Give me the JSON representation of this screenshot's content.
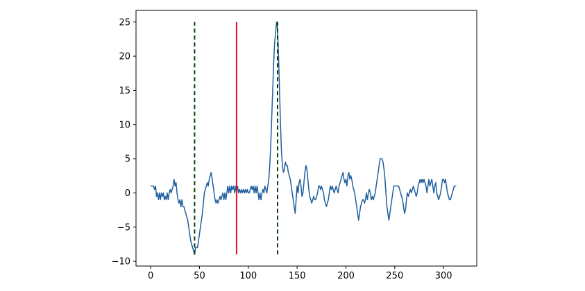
{
  "chart_data": {
    "type": "line",
    "title": "",
    "xlabel": "",
    "ylabel": "",
    "xlim": [
      -15,
      334
    ],
    "ylim": [
      -10.7,
      26.7
    ],
    "x_ticks": [
      0,
      50,
      100,
      150,
      200,
      250,
      300
    ],
    "x_tick_labels": [
      "0",
      "50",
      "100",
      "150",
      "200",
      "250",
      "300"
    ],
    "y_ticks": [
      -10,
      -5,
      0,
      5,
      10,
      15,
      20,
      25
    ],
    "y_tick_labels": [
      "−10",
      "−5",
      "0",
      "5",
      "10",
      "15",
      "20",
      "25"
    ],
    "grid": false,
    "legend": "none",
    "colors": {
      "series": "#1f5f9e",
      "marker_dashed": "#0b3d0b",
      "marker_solid": "#e8141a",
      "axes": "#000000"
    },
    "series": [
      {
        "points": [
          [
            0,
            1
          ],
          [
            3,
            1
          ],
          [
            4,
            0.5
          ],
          [
            5,
            1
          ],
          [
            6,
            -0.5
          ],
          [
            7,
            0
          ],
          [
            8,
            -1
          ],
          [
            9,
            0
          ],
          [
            10,
            -1
          ],
          [
            11,
            0
          ],
          [
            12,
            -0.5
          ],
          [
            13,
            0
          ],
          [
            14,
            -1
          ],
          [
            15,
            -0.5
          ],
          [
            16,
            -1
          ],
          [
            17,
            0
          ],
          [
            18,
            -1
          ],
          [
            19,
            0
          ],
          [
            20,
            0.5
          ],
          [
            21,
            0
          ],
          [
            22,
            0.5
          ],
          [
            23,
            1
          ],
          [
            24,
            2
          ],
          [
            25,
            1
          ],
          [
            26,
            1.5
          ],
          [
            27,
            0
          ],
          [
            28,
            -1
          ],
          [
            29,
            -1.5
          ],
          [
            30,
            -1
          ],
          [
            31,
            -2
          ],
          [
            32,
            -1
          ],
          [
            33,
            -2
          ],
          [
            34,
            -2
          ],
          [
            35,
            -2.5
          ],
          [
            36,
            -3
          ],
          [
            37,
            -3.5
          ],
          [
            38,
            -4
          ],
          [
            39,
            -5
          ],
          [
            40,
            -6
          ],
          [
            41,
            -7
          ],
          [
            42,
            -7.5
          ],
          [
            43,
            -8
          ],
          [
            44,
            -8.5
          ],
          [
            45,
            -9
          ],
          [
            46,
            -8
          ],
          [
            47,
            -8
          ],
          [
            48,
            -8
          ],
          [
            49,
            -7
          ],
          [
            50,
            -6
          ],
          [
            51,
            -5
          ],
          [
            52,
            -4
          ],
          [
            53,
            -3
          ],
          [
            54,
            -1.5
          ],
          [
            55,
            0
          ],
          [
            56,
            0.5
          ],
          [
            57,
            1
          ],
          [
            58,
            1.5
          ],
          [
            59,
            1
          ],
          [
            60,
            2
          ],
          [
            61,
            2.5
          ],
          [
            62,
            3
          ],
          [
            63,
            2
          ],
          [
            64,
            1
          ],
          [
            65,
            0
          ],
          [
            66,
            -1
          ],
          [
            67,
            -1.5
          ],
          [
            68,
            -1
          ],
          [
            69,
            -1.5
          ],
          [
            70,
            -1
          ],
          [
            71,
            -0.5
          ],
          [
            72,
            -1
          ],
          [
            73,
            -0.5
          ],
          [
            74,
            0
          ],
          [
            75,
            -1
          ],
          [
            76,
            0
          ],
          [
            77,
            -1
          ],
          [
            78,
            0
          ],
          [
            79,
            1
          ],
          [
            80,
            0
          ],
          [
            81,
            1
          ],
          [
            82,
            0
          ],
          [
            83,
            1
          ],
          [
            84,
            0.5
          ],
          [
            85,
            1
          ],
          [
            86,
            0
          ],
          [
            87,
            1
          ],
          [
            88,
            0
          ],
          [
            89,
            1
          ],
          [
            90,
            0
          ],
          [
            91,
            0.5
          ],
          [
            92,
            0
          ],
          [
            93,
            0.5
          ],
          [
            94,
            0
          ],
          [
            95,
            0.5
          ],
          [
            96,
            0
          ],
          [
            97,
            0.5
          ],
          [
            98,
            0
          ],
          [
            99,
            0.5
          ],
          [
            100,
            0
          ],
          [
            101,
            0
          ],
          [
            102,
            0.5
          ],
          [
            103,
            1
          ],
          [
            104,
            0.5
          ],
          [
            105,
            1
          ],
          [
            106,
            0
          ],
          [
            107,
            1
          ],
          [
            108,
            0
          ],
          [
            109,
            1
          ],
          [
            110,
            0
          ],
          [
            111,
            -1
          ],
          [
            112,
            0
          ],
          [
            113,
            -1
          ],
          [
            114,
            0
          ],
          [
            115,
            0.5
          ],
          [
            116,
            0
          ],
          [
            117,
            1
          ],
          [
            118,
            0.5
          ],
          [
            119,
            0
          ],
          [
            120,
            1
          ],
          [
            121,
            2
          ],
          [
            122,
            4
          ],
          [
            123,
            7
          ],
          [
            124,
            11
          ],
          [
            125,
            15
          ],
          [
            126,
            19
          ],
          [
            127,
            22
          ],
          [
            128,
            23.5
          ],
          [
            129,
            25
          ],
          [
            130,
            24
          ],
          [
            131,
            20
          ],
          [
            132,
            15
          ],
          [
            133,
            10
          ],
          [
            134,
            6
          ],
          [
            135,
            4
          ],
          [
            136,
            3
          ],
          [
            137,
            3.5
          ],
          [
            138,
            4.5
          ],
          [
            139,
            4
          ],
          [
            140,
            4
          ],
          [
            141,
            3
          ],
          [
            142,
            2.5
          ],
          [
            143,
            2
          ],
          [
            144,
            1
          ],
          [
            145,
            0
          ],
          [
            146,
            -1
          ],
          [
            147,
            -2
          ],
          [
            148,
            -3
          ],
          [
            149,
            -1
          ],
          [
            150,
            1
          ],
          [
            151,
            0
          ],
          [
            152,
            1.5
          ],
          [
            153,
            2
          ],
          [
            154,
            1
          ],
          [
            155,
            -0.5
          ],
          [
            156,
            0
          ],
          [
            157,
            1.5
          ],
          [
            158,
            3
          ],
          [
            159,
            4
          ],
          [
            160,
            3.5
          ],
          [
            161,
            2
          ],
          [
            162,
            0.5
          ],
          [
            163,
            -0.5
          ],
          [
            164,
            -1
          ],
          [
            165,
            -1.5
          ],
          [
            166,
            -1
          ],
          [
            167,
            -0.5
          ],
          [
            168,
            -1
          ],
          [
            169,
            -1
          ],
          [
            170,
            -0.5
          ],
          [
            171,
            0
          ],
          [
            172,
            1
          ],
          [
            173,
            1
          ],
          [
            174,
            0.5
          ],
          [
            175,
            1
          ],
          [
            176,
            0.5
          ],
          [
            177,
            0
          ],
          [
            178,
            -1
          ],
          [
            179,
            -1.5
          ],
          [
            180,
            -2
          ],
          [
            181,
            -1.5
          ],
          [
            182,
            -1
          ],
          [
            183,
            0
          ],
          [
            184,
            1
          ],
          [
            185,
            0.5
          ],
          [
            186,
            1
          ],
          [
            187,
            0.5
          ],
          [
            188,
            0
          ],
          [
            189,
            0.5
          ],
          [
            190,
            1
          ],
          [
            191,
            0.5
          ],
          [
            192,
            0
          ],
          [
            193,
            1
          ],
          [
            194,
            1.5
          ],
          [
            195,
            2
          ],
          [
            196,
            2.5
          ],
          [
            197,
            3
          ],
          [
            198,
            2
          ],
          [
            199,
            1.5
          ],
          [
            200,
            2
          ],
          [
            201,
            1
          ],
          [
            202,
            2.5
          ],
          [
            203,
            3
          ],
          [
            204,
            2
          ],
          [
            205,
            2.5
          ],
          [
            206,
            2
          ],
          [
            207,
            1
          ],
          [
            208,
            0.5
          ],
          [
            209,
            0
          ],
          [
            210,
            -1
          ],
          [
            211,
            -2
          ],
          [
            212,
            -3
          ],
          [
            213,
            -4
          ],
          [
            214,
            -3
          ],
          [
            215,
            -2
          ],
          [
            216,
            -1.5
          ],
          [
            217,
            -1
          ],
          [
            218,
            -1
          ],
          [
            219,
            -1.5
          ],
          [
            220,
            -1
          ],
          [
            221,
            0
          ],
          [
            222,
            -1
          ],
          [
            223,
            0
          ],
          [
            224,
            0.5
          ],
          [
            225,
            0
          ],
          [
            226,
            -1
          ],
          [
            227,
            -0.5
          ],
          [
            228,
            -1
          ],
          [
            229,
            -0.5
          ],
          [
            230,
            0
          ],
          [
            231,
            1
          ],
          [
            232,
            2
          ],
          [
            233,
            3
          ],
          [
            234,
            4
          ],
          [
            235,
            5
          ],
          [
            236,
            5
          ],
          [
            237,
            5
          ],
          [
            238,
            4.5
          ],
          [
            239,
            3.5
          ],
          [
            240,
            2
          ],
          [
            241,
            0
          ],
          [
            242,
            -2
          ],
          [
            243,
            -3
          ],
          [
            244,
            -4
          ],
          [
            245,
            -3
          ],
          [
            246,
            -2
          ],
          [
            247,
            -1
          ],
          [
            248,
            0
          ],
          [
            249,
            1
          ],
          [
            250,
            1
          ],
          [
            252,
            1
          ],
          [
            254,
            1
          ],
          [
            255,
            0.5
          ],
          [
            256,
            0
          ],
          [
            257,
            -0.5
          ],
          [
            258,
            -1
          ],
          [
            259,
            -2
          ],
          [
            260,
            -3
          ],
          [
            261,
            -2.5
          ],
          [
            262,
            -1
          ],
          [
            263,
            0
          ],
          [
            264,
            -0.5
          ],
          [
            265,
            0
          ],
          [
            266,
            0.5
          ],
          [
            267,
            0
          ],
          [
            268,
            0.5
          ],
          [
            269,
            1
          ],
          [
            270,
            0.5
          ],
          [
            271,
            0
          ],
          [
            272,
            -0.5
          ],
          [
            273,
            0
          ],
          [
            274,
            1
          ],
          [
            275,
            1.5
          ],
          [
            276,
            2
          ],
          [
            277,
            1.5
          ],
          [
            278,
            2
          ],
          [
            279,
            1.5
          ],
          [
            280,
            2
          ],
          [
            281,
            1.5
          ],
          [
            282,
            1
          ],
          [
            283,
            0
          ],
          [
            284,
            1
          ],
          [
            285,
            2
          ],
          [
            286,
            1
          ],
          [
            287,
            1.5
          ],
          [
            288,
            2
          ],
          [
            289,
            1
          ],
          [
            290,
            0
          ],
          [
            291,
            1
          ],
          [
            292,
            1.5
          ],
          [
            293,
            0
          ],
          [
            294,
            -0.5
          ],
          [
            295,
            -1
          ],
          [
            296,
            -0.5
          ],
          [
            297,
            0
          ],
          [
            298,
            1
          ],
          [
            299,
            2
          ],
          [
            300,
            2
          ],
          [
            301,
            1.5
          ],
          [
            302,
            2
          ],
          [
            303,
            1
          ],
          [
            304,
            0
          ],
          [
            305,
            -0.5
          ],
          [
            306,
            -1
          ],
          [
            307,
            -1
          ],
          [
            308,
            -0.5
          ],
          [
            309,
            0
          ],
          [
            310,
            0.5
          ],
          [
            311,
            1
          ],
          [
            312,
            1
          ],
          [
            313,
            1
          ]
        ]
      }
    ],
    "vertical_lines": [
      {
        "x": 45,
        "y_from": -9,
        "y_to": 25,
        "style": "dashed",
        "color_key": "marker_dashed"
      },
      {
        "x": 88,
        "y_from": -9,
        "y_to": 25,
        "style": "solid",
        "color_key": "marker_solid"
      },
      {
        "x": 130,
        "y_from": -9,
        "y_to": 25,
        "style": "dashed",
        "color_key": "marker_dashed"
      }
    ]
  }
}
